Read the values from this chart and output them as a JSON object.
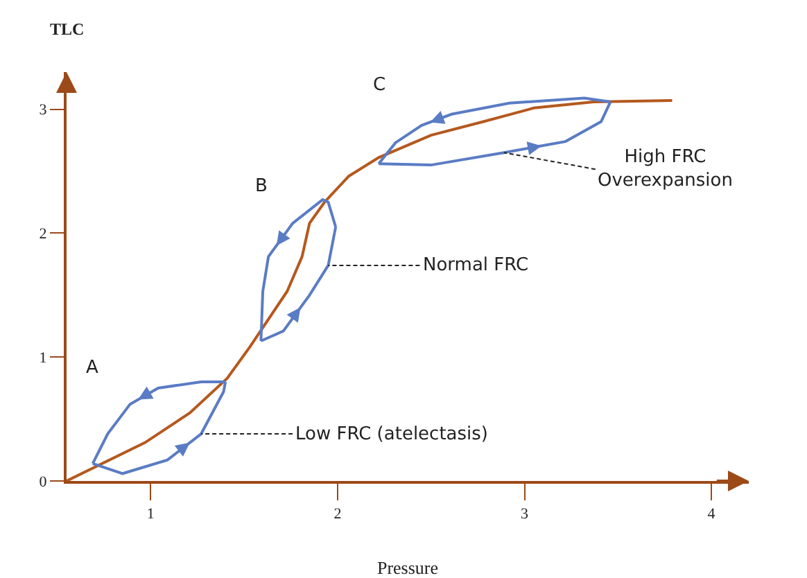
{
  "chart_data": {
    "type": "line",
    "xlabel": "Pressure",
    "ylabel": "TLC",
    "xlim": [
      0.55,
      4.2
    ],
    "ylim": [
      0,
      3.3
    ],
    "xticks": [
      1,
      2,
      3,
      4
    ],
    "yticks": [
      0,
      1,
      2,
      3
    ],
    "grid": false,
    "marker": "none",
    "line_style": "solid",
    "series": [
      {
        "color": "#b5581e",
        "x": [
          0.55,
          0.97,
          1.21,
          1.41,
          1.53,
          1.73,
          1.81,
          1.85,
          1.93,
          2.06,
          2.22,
          2.5,
          2.78,
          3.05,
          3.37,
          3.79
        ],
        "values": [
          0,
          0.31,
          0.55,
          0.83,
          1.08,
          1.53,
          1.81,
          2.08,
          2.25,
          2.46,
          2.61,
          2.79,
          2.9,
          3.01,
          3.06,
          3.07
        ]
      },
      {
        "color": "#5a7cc4",
        "x": [
          0.69,
          0.85,
          1.09,
          1.27,
          1.39,
          1.4
        ],
        "values": [
          0.14,
          0.06,
          0.17,
          0.38,
          0.72,
          0.8
        ]
      },
      {
        "color": "#5a7cc4",
        "x": [
          0.69,
          0.77,
          0.89,
          1.04,
          1.27,
          1.4
        ],
        "values": [
          0.14,
          0.38,
          0.62,
          0.75,
          0.8,
          0.8
        ]
      },
      {
        "color": "#5a7cc4",
        "x": [
          1.59,
          1.71,
          1.85,
          1.95,
          1.99
        ],
        "values": [
          1.13,
          1.21,
          1.5,
          1.74,
          2.05
        ]
      },
      {
        "color": "#5a7cc4",
        "x": [
          1.59,
          1.6,
          1.63,
          1.76,
          1.92,
          1.95,
          1.99
        ],
        "values": [
          1.13,
          1.53,
          1.81,
          2.08,
          2.27,
          2.25,
          2.05
        ]
      },
      {
        "color": "#5a7cc4",
        "x": [
          2.22,
          2.5,
          2.89,
          3.22,
          3.41,
          3.46
        ],
        "values": [
          2.56,
          2.55,
          2.65,
          2.74,
          2.9,
          3.06
        ]
      },
      {
        "color": "#5a7cc4",
        "x": [
          2.22,
          2.31,
          2.45,
          2.61,
          2.92,
          3.32,
          3.46
        ],
        "values": [
          2.56,
          2.73,
          2.87,
          2.96,
          3.05,
          3.09,
          3.06
        ]
      }
    ],
    "annotations": [
      "A",
      "B",
      "C",
      {
        "text": "Low FRC (atelectasis)",
        "x": 1.27,
        "y": 0.38
      },
      {
        "text": "Normal FRC",
        "x": 1.95,
        "y": 1.74
      },
      {
        "text": "High FRC\nOverexpansion",
        "x": 2.89,
        "y": 2.65
      }
    ]
  }
}
